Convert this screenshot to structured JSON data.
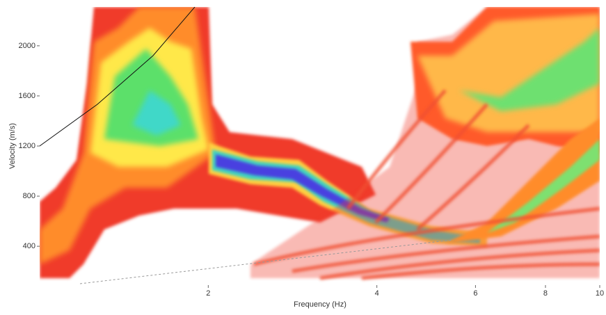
{
  "chart_data": {
    "type": "dispersion-image",
    "x_label": "Frequency (Hz)",
    "y_label": "Velocity (m/s)",
    "xscale": "log",
    "xlim": [
      1,
      10
    ],
    "xticks": [
      2,
      4,
      6,
      8,
      10
    ],
    "ylim": [
      90,
      2310
    ],
    "yticks": [
      400,
      800,
      1200,
      1600,
      2000
    ]
  }
}
